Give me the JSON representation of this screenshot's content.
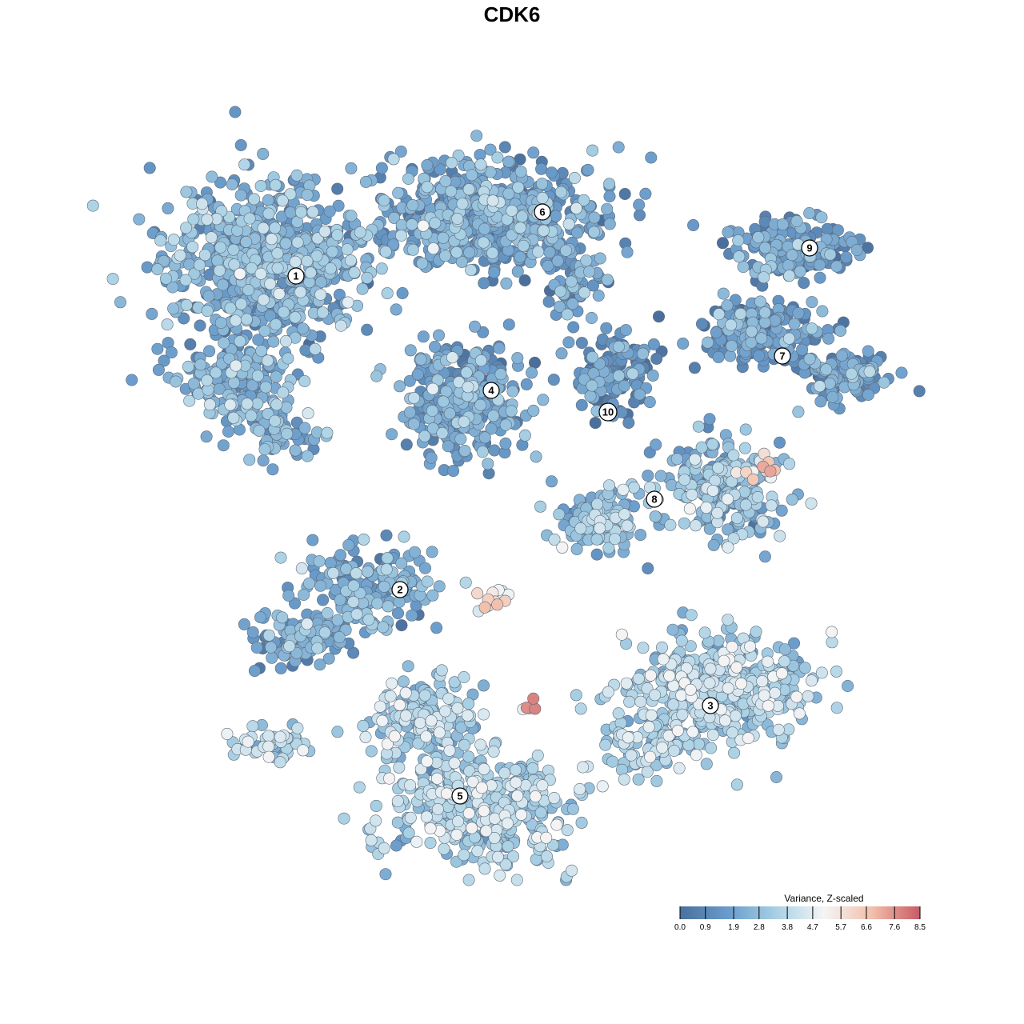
{
  "chart_data": {
    "type": "scatter",
    "title": "CDK6",
    "colorbar": {
      "title": "Variance, Z-scaled",
      "range": [
        0.0,
        8.5
      ],
      "ticks": [
        "0.0",
        "0.9",
        "1.9",
        "2.8",
        "3.8",
        "4.7",
        "5.7",
        "6.6",
        "7.6",
        "8.5"
      ],
      "colors": [
        "#4a6f9c",
        "#6a9ccb",
        "#a8d0e4",
        "#f4f5f6",
        "#f2c0ab",
        "#c85a66"
      ],
      "placement": "bottom-right"
    },
    "clusters": [
      {
        "label": "1",
        "value": 2.2
      },
      {
        "label": "2",
        "value": 2.0
      },
      {
        "label": "3",
        "value": 3.4
      },
      {
        "label": "4",
        "value": 1.8
      },
      {
        "label": "5",
        "value": 3.3
      },
      {
        "label": "6",
        "value": 1.9
      },
      {
        "label": "7",
        "value": 1.5
      },
      {
        "label": "8",
        "value": 2.7
      },
      {
        "label": "9",
        "value": 1.6
      },
      {
        "label": "10",
        "value": 1.3
      }
    ],
    "hotspots": [
      {
        "value": 7.0
      },
      {
        "value": 7.6
      },
      {
        "value": 8.1
      }
    ]
  }
}
